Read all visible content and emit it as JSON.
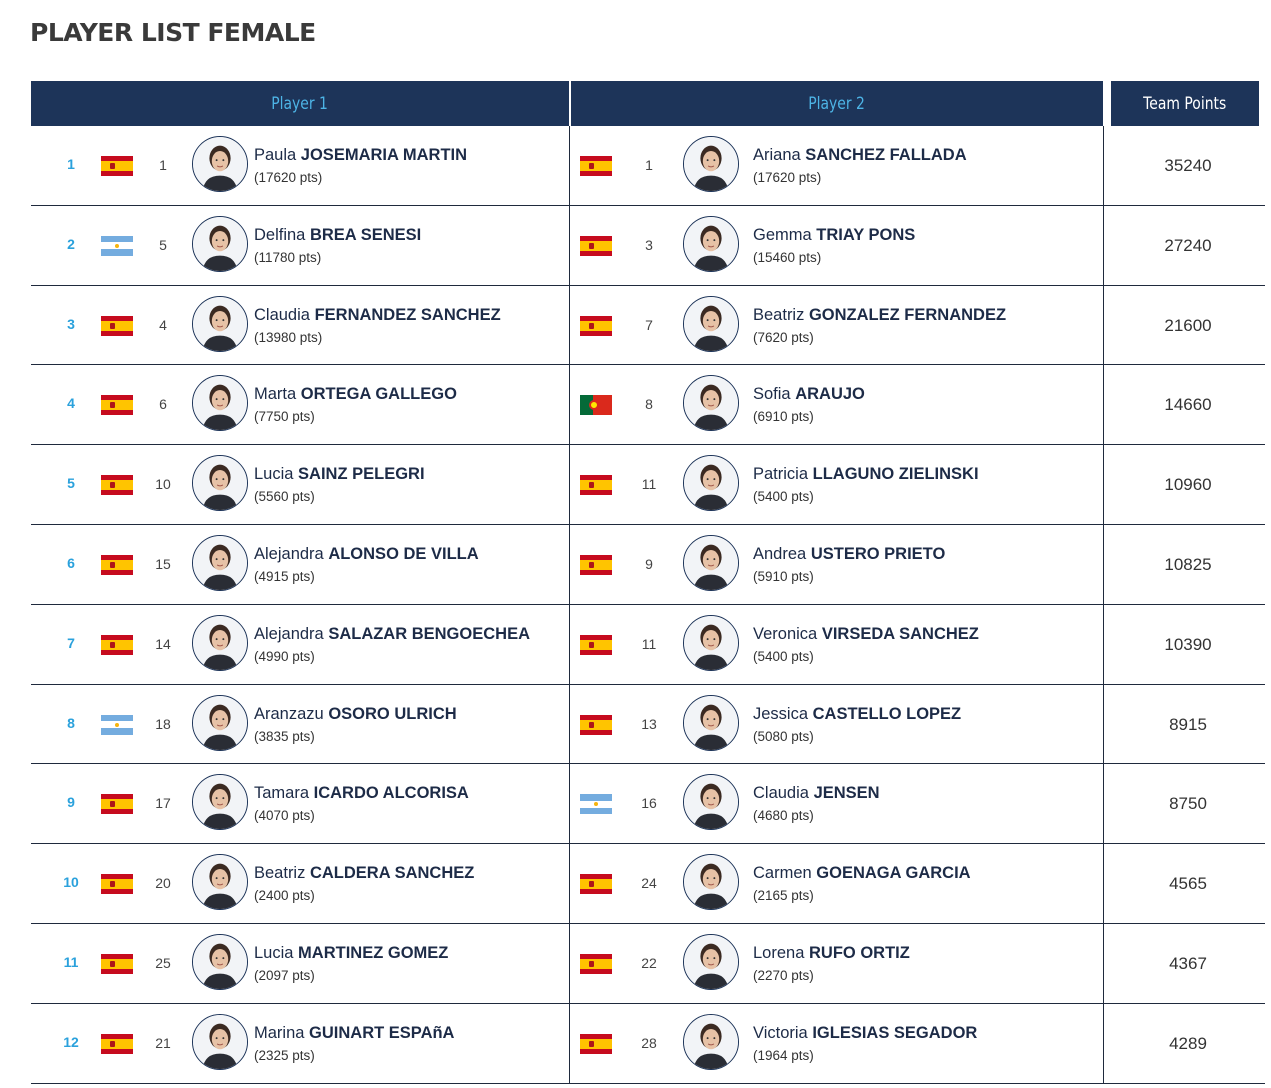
{
  "page_title": "PLAYER LIST FEMALE",
  "headers": {
    "player1": "Player 1",
    "player2": "Player 2",
    "team_points": "Team Points"
  },
  "colors": {
    "header_bg": "#1d3459",
    "accent": "#2aa1dc",
    "text": "#1d2b47"
  },
  "rows": [
    {
      "rank": "1",
      "team_points": "35240",
      "p1": {
        "flag": "spain",
        "seed": "1",
        "first": "Paula",
        "last": "JOSEMARIA MARTIN",
        "pts": "(17620 pts)"
      },
      "p2": {
        "flag": "spain",
        "seed": "1",
        "first": "Ariana",
        "last": "SANCHEZ FALLADA",
        "pts": "(17620 pts)"
      }
    },
    {
      "rank": "2",
      "team_points": "27240",
      "p1": {
        "flag": "argentina",
        "seed": "5",
        "first": "Delfina",
        "last": "BREA SENESI",
        "pts": "(11780 pts)"
      },
      "p2": {
        "flag": "spain",
        "seed": "3",
        "first": "Gemma",
        "last": "TRIAY PONS",
        "pts": "(15460 pts)"
      }
    },
    {
      "rank": "3",
      "team_points": "21600",
      "p1": {
        "flag": "spain",
        "seed": "4",
        "first": "Claudia",
        "last": "FERNANDEZ SANCHEZ",
        "pts": "(13980 pts)"
      },
      "p2": {
        "flag": "spain",
        "seed": "7",
        "first": "Beatriz",
        "last": "GONZALEZ FERNANDEZ",
        "pts": "(7620 pts)"
      }
    },
    {
      "rank": "4",
      "team_points": "14660",
      "p1": {
        "flag": "spain",
        "seed": "6",
        "first": "Marta",
        "last": "ORTEGA GALLEGO",
        "pts": "(7750 pts)"
      },
      "p2": {
        "flag": "portugal",
        "seed": "8",
        "first": "Sofia",
        "last": "ARAUJO",
        "pts": "(6910 pts)"
      }
    },
    {
      "rank": "5",
      "team_points": "10960",
      "p1": {
        "flag": "spain",
        "seed": "10",
        "first": "Lucia",
        "last": "SAINZ PELEGRI",
        "pts": "(5560 pts)"
      },
      "p2": {
        "flag": "spain",
        "seed": "11",
        "first": "Patricia",
        "last": "LLAGUNO ZIELINSKI",
        "pts": "(5400 pts)"
      }
    },
    {
      "rank": "6",
      "team_points": "10825",
      "p1": {
        "flag": "spain",
        "seed": "15",
        "first": "Alejandra",
        "last": "ALONSO DE VILLA",
        "pts": "(4915 pts)"
      },
      "p2": {
        "flag": "spain",
        "seed": "9",
        "first": "Andrea",
        "last": "USTERO PRIETO",
        "pts": "(5910 pts)"
      }
    },
    {
      "rank": "7",
      "team_points": "10390",
      "p1": {
        "flag": "spain",
        "seed": "14",
        "first": "Alejandra",
        "last": "SALAZAR BENGOECHEA",
        "pts": "(4990 pts)"
      },
      "p2": {
        "flag": "spain",
        "seed": "11",
        "first": "Veronica",
        "last": "VIRSEDA SANCHEZ",
        "pts": "(5400 pts)"
      }
    },
    {
      "rank": "8",
      "team_points": "8915",
      "p1": {
        "flag": "argentina",
        "seed": "18",
        "first": "Aranzazu",
        "last": "OSORO ULRICH",
        "pts": "(3835 pts)"
      },
      "p2": {
        "flag": "spain",
        "seed": "13",
        "first": "Jessica",
        "last": "CASTELLO LOPEZ",
        "pts": "(5080 pts)"
      }
    },
    {
      "rank": "9",
      "team_points": "8750",
      "p1": {
        "flag": "spain",
        "seed": "17",
        "first": "Tamara",
        "last": "ICARDO ALCORISA",
        "pts": "(4070 pts)"
      },
      "p2": {
        "flag": "argentina",
        "seed": "16",
        "first": "Claudia",
        "last": "JENSEN",
        "pts": "(4680 pts)"
      }
    },
    {
      "rank": "10",
      "team_points": "4565",
      "p1": {
        "flag": "spain",
        "seed": "20",
        "first": "Beatriz",
        "last": "CALDERA SANCHEZ",
        "pts": "(2400 pts)"
      },
      "p2": {
        "flag": "spain",
        "seed": "24",
        "first": "Carmen",
        "last": "GOENAGA GARCIA",
        "pts": "(2165 pts)"
      }
    },
    {
      "rank": "11",
      "team_points": "4367",
      "p1": {
        "flag": "spain",
        "seed": "25",
        "first": "Lucia",
        "last": "MARTINEZ GOMEZ",
        "pts": "(2097 pts)"
      },
      "p2": {
        "flag": "spain",
        "seed": "22",
        "first": "Lorena",
        "last": "RUFO ORTIZ",
        "pts": "(2270 pts)"
      }
    },
    {
      "rank": "12",
      "team_points": "4289",
      "p1": {
        "flag": "spain",
        "seed": "21",
        "first": "Marina",
        "last": "GUINART ESPAñA",
        "pts": "(2325 pts)"
      },
      "p2": {
        "flag": "spain",
        "seed": "28",
        "first": "Victoria",
        "last": "IGLESIAS SEGADOR",
        "pts": "(1964 pts)"
      }
    }
  ]
}
